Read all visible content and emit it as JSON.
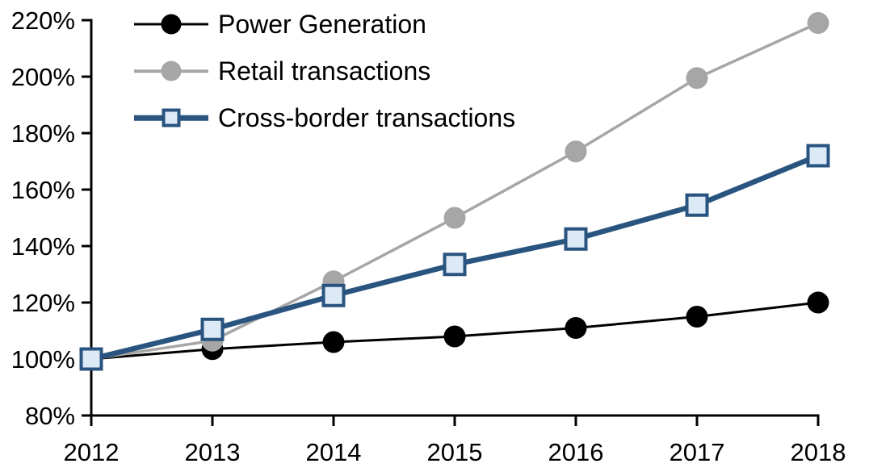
{
  "chart_data": {
    "type": "line",
    "title": "",
    "xlabel": "",
    "ylabel": "",
    "categories": [
      "2012",
      "2013",
      "2014",
      "2015",
      "2016",
      "2017",
      "2018"
    ],
    "series": [
      {
        "name": "Power Generation",
        "color": "#000000",
        "marker": "circle",
        "marker_fill": "#000000",
        "line_width": 3,
        "values": [
          100,
          103.5,
          106,
          108,
          111,
          115,
          120
        ]
      },
      {
        "name": "Retail transactions",
        "color": "#a6a6a6",
        "marker": "circle",
        "marker_fill": "#a6a6a6",
        "line_width": 3.5,
        "values": [
          100,
          106.5,
          127.5,
          150,
          173.5,
          199.5,
          219
        ]
      },
      {
        "name": "Cross-border transactions",
        "color": "#29547f",
        "marker": "square",
        "marker_fill": "#dce9f6",
        "line_width": 6.5,
        "values": [
          100,
          110.5,
          122.5,
          133.5,
          142.5,
          154.5,
          172
        ]
      }
    ],
    "y_ticks": [
      {
        "label": "220%",
        "value": 220
      },
      {
        "label": "200%",
        "value": 200
      },
      {
        "label": "180%",
        "value": 180
      },
      {
        "label": "160%",
        "value": 160
      },
      {
        "label": "140%",
        "value": 140
      },
      {
        "label": "120%",
        "value": 120
      },
      {
        "label": "100%",
        "value": 100
      },
      {
        "label": "80%",
        "value": 80
      }
    ],
    "ylim": [
      80,
      220
    ],
    "grid": false,
    "legend_position": "top-left",
    "axis_color": "#000000"
  }
}
